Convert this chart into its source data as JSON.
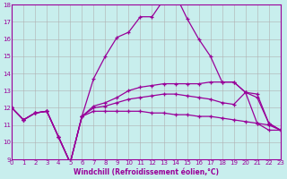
{
  "xlabel": "Windchill (Refroidissement éolien,°C)",
  "background_color": "#c8eeed",
  "line_color": "#990099",
  "grid_color": "#b0b0b0",
  "xmin": 0,
  "xmax": 23,
  "ymin": 9,
  "ymax": 18,
  "yticks": [
    9,
    10,
    11,
    12,
    13,
    14,
    15,
    16,
    17,
    18
  ],
  "xticks": [
    0,
    1,
    2,
    3,
    4,
    5,
    6,
    7,
    8,
    9,
    10,
    11,
    12,
    13,
    14,
    15,
    16,
    17,
    18,
    19,
    20,
    21,
    22,
    23
  ],
  "series": [
    {
      "x": [
        0,
        1,
        2,
        3,
        4,
        5,
        6,
        7,
        8,
        9,
        10,
        11,
        12,
        13,
        14,
        15,
        16,
        17,
        18,
        19,
        20,
        21,
        22,
        23
      ],
      "y": [
        12.0,
        11.3,
        11.7,
        11.8,
        10.3,
        8.8,
        11.5,
        11.8,
        11.8,
        11.8,
        11.8,
        11.8,
        11.7,
        11.7,
        11.6,
        11.6,
        11.5,
        11.5,
        11.4,
        11.3,
        11.2,
        11.1,
        11.0,
        10.7
      ]
    },
    {
      "x": [
        0,
        1,
        2,
        3,
        4,
        5,
        6,
        7,
        8,
        9,
        10,
        11,
        12,
        13,
        14,
        15,
        16,
        17,
        18,
        19,
        20,
        21,
        22,
        23
      ],
      "y": [
        12.0,
        11.3,
        11.7,
        11.8,
        10.3,
        8.8,
        11.5,
        12.0,
        12.1,
        12.3,
        12.5,
        12.6,
        12.7,
        12.8,
        12.8,
        12.7,
        12.6,
        12.5,
        12.3,
        12.2,
        12.9,
        12.8,
        11.1,
        10.7
      ]
    },
    {
      "x": [
        0,
        1,
        2,
        3,
        4,
        5,
        6,
        7,
        8,
        9,
        10,
        11,
        12,
        13,
        14,
        15,
        16,
        17,
        18,
        19,
        20,
        21,
        22,
        23
      ],
      "y": [
        12.0,
        11.3,
        11.7,
        11.8,
        10.3,
        8.8,
        11.5,
        12.1,
        12.3,
        12.6,
        13.0,
        13.2,
        13.3,
        13.4,
        13.4,
        13.4,
        13.4,
        13.5,
        13.5,
        13.5,
        12.9,
        12.6,
        11.1,
        10.7
      ]
    },
    {
      "x": [
        0,
        1,
        2,
        3,
        4,
        5,
        6,
        7,
        8,
        9,
        10,
        11,
        12,
        13,
        14,
        15,
        16,
        17,
        18,
        19,
        20,
        21,
        22,
        23
      ],
      "y": [
        12.0,
        11.3,
        11.7,
        11.8,
        10.3,
        8.8,
        11.5,
        13.7,
        15.0,
        16.1,
        16.4,
        17.3,
        17.3,
        18.3,
        18.6,
        17.2,
        16.0,
        15.0,
        13.5,
        13.5,
        12.9,
        11.1,
        10.7,
        10.7
      ]
    }
  ]
}
